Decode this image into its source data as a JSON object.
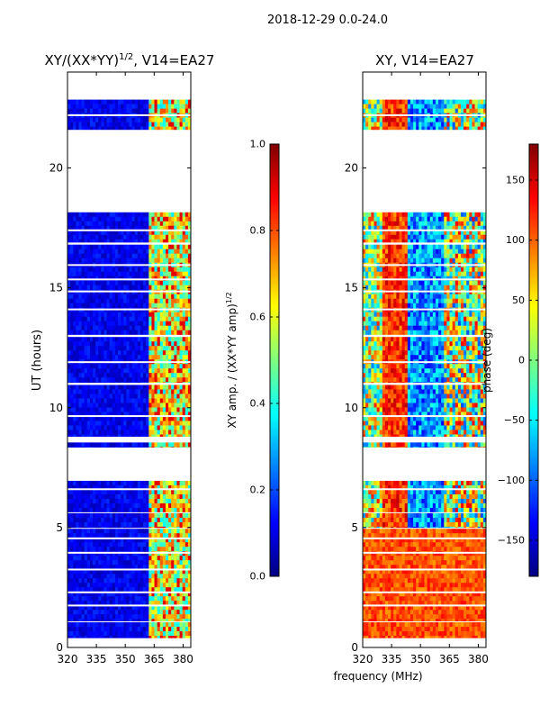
{
  "figure": {
    "suptitle": "2018-12-29 0.0-24.0",
    "xlabel": "frequency (MHz)"
  },
  "colors": {
    "jet": [
      "#00007f",
      "#0000ff",
      "#007fff",
      "#00ffff",
      "#7fff7f",
      "#ffff00",
      "#ff7f00",
      "#ff0000",
      "#7f0000"
    ],
    "frame": "#000000",
    "background": "#ffffff"
  },
  "chart_data": [
    {
      "type": "heatmap",
      "title": "XY/(XX*YY)1/2, V14=EA27",
      "title_main": "XY/(XX*YY)",
      "title_exp": "1/2",
      "title_tail": ", V14=EA27",
      "xlabel": "",
      "ylabel": "UT (hours)",
      "xlim": [
        320,
        384
      ],
      "ylim": [
        0,
        24
      ],
      "xticks": [
        320,
        335,
        350,
        365,
        380
      ],
      "yticks": [
        0,
        5,
        10,
        15,
        20
      ],
      "xtick_labels": [
        "320",
        "335",
        "350",
        "365",
        "380"
      ],
      "ytick_labels": [
        "0",
        "5",
        "10",
        "15",
        "20"
      ],
      "data_blocks_hours": [
        [
          0.4,
          1.05
        ],
        [
          1.1,
          4.95
        ],
        [
          5.0,
          5.6
        ],
        [
          5.65,
          6.95
        ],
        [
          8.35,
          8.55
        ],
        [
          8.8,
          10.95
        ],
        [
          11.05,
          12.95
        ],
        [
          13.05,
          16.8
        ],
        [
          16.9,
          18.15
        ],
        [
          21.6,
          22.85
        ]
      ],
      "gaps_hours": [
        1.75,
        2.3,
        3.25,
        3.95,
        4.55,
        6.6,
        9.65,
        11.9,
        14.1,
        14.85,
        15.35,
        15.95,
        17.4,
        22.2
      ],
      "colorbar": {
        "label": "XY amp. / (XX*YY amp)1/2",
        "label_main": "XY amp. / (XX*YY amp)",
        "label_exp": "1/2",
        "range": [
          0.0,
          1.0
        ],
        "ticks": [
          0.0,
          0.2,
          0.4,
          0.6,
          0.8,
          1.0
        ],
        "tick_labels": [
          "0.0",
          "0.2",
          "0.4",
          "0.6",
          "0.8",
          "1.0"
        ]
      }
    },
    {
      "type": "heatmap",
      "title": "XY, V14=EA27",
      "xlabel": "frequency (MHz)",
      "ylabel": "",
      "xlim": [
        320,
        384
      ],
      "ylim": [
        0,
        24
      ],
      "xticks": [
        320,
        335,
        350,
        365,
        380
      ],
      "yticks": [
        0,
        5,
        10,
        15,
        20
      ],
      "xtick_labels": [
        "320",
        "335",
        "350",
        "365",
        "380"
      ],
      "ytick_labels": [
        "0",
        "5",
        "10",
        "15",
        "20"
      ],
      "data_blocks_hours": [
        [
          0.4,
          1.05
        ],
        [
          1.1,
          4.95
        ],
        [
          5.0,
          5.6
        ],
        [
          5.65,
          6.95
        ],
        [
          8.35,
          8.55
        ],
        [
          8.8,
          10.95
        ],
        [
          11.05,
          12.95
        ],
        [
          13.05,
          16.8
        ],
        [
          16.9,
          18.15
        ],
        [
          21.6,
          22.85
        ]
      ],
      "gaps_hours": [
        1.75,
        2.3,
        3.25,
        3.95,
        4.55,
        6.6,
        9.65,
        11.9,
        14.1,
        14.85,
        15.35,
        15.95,
        17.4,
        22.2
      ],
      "colorbar": {
        "label": "phase (deg)",
        "range": [
          -180,
          180
        ],
        "ticks": [
          -150,
          -100,
          -50,
          0,
          50,
          100,
          150
        ],
        "tick_labels": [
          "−150",
          "−100",
          "−50",
          "0",
          "50",
          "100",
          "150"
        ]
      }
    }
  ]
}
